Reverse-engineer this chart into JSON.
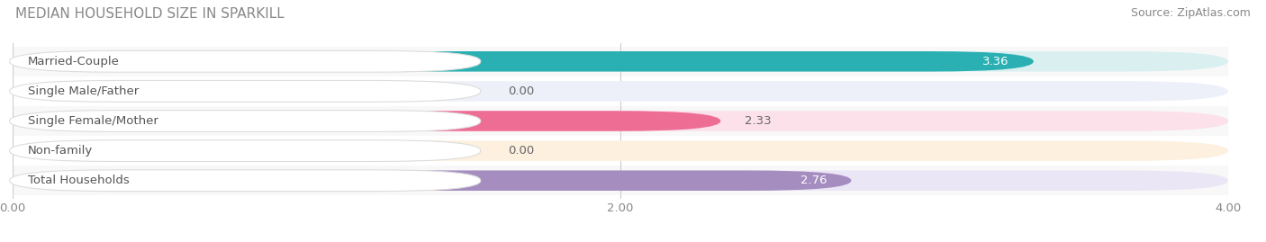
{
  "title": "MEDIAN HOUSEHOLD SIZE IN SPARKILL",
  "source": "Source: ZipAtlas.com",
  "categories": [
    "Married-Couple",
    "Single Male/Father",
    "Single Female/Mother",
    "Non-family",
    "Total Households"
  ],
  "values": [
    3.36,
    0.0,
    2.33,
    0.0,
    2.76
  ],
  "bar_colors": [
    "#2ab0b2",
    "#9aabdb",
    "#ee6d95",
    "#f5c08a",
    "#a58dc0"
  ],
  "bar_bg_colors": [
    "#daf0f0",
    "#edf0f8",
    "#fce0ea",
    "#fdf0de",
    "#ebe6f5"
  ],
  "row_bg_colors": [
    "#f8f8f8",
    "#ffffff",
    "#f8f8f8",
    "#ffffff",
    "#f8f8f8"
  ],
  "xlim": [
    0,
    4.0
  ],
  "xticks": [
    0.0,
    2.0,
    4.0
  ],
  "xtick_labels": [
    "0.00",
    "2.00",
    "4.00"
  ],
  "label_fontsize": 9.5,
  "value_fontsize": 9.5,
  "title_fontsize": 11,
  "source_fontsize": 9,
  "background_color": "#ffffff",
  "grid_color": "#cccccc"
}
